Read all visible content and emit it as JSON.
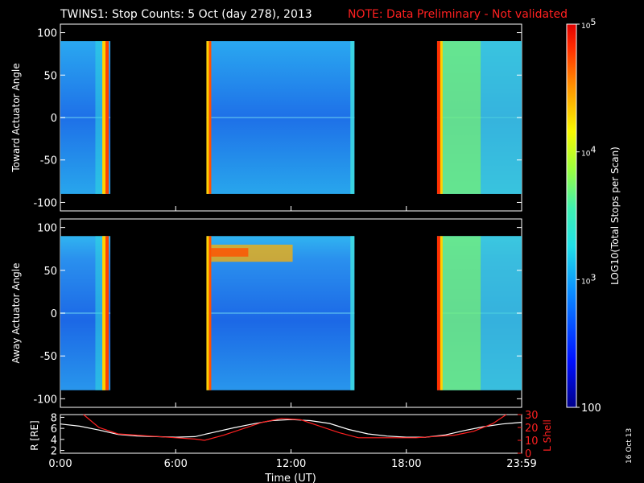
{
  "header": {
    "title": "TWINS1: Stop Counts:  5 Oct (day 278), 2013",
    "note": "NOTE: Data Preliminary - Not validated"
  },
  "plot_date": "16 Oct 13",
  "colorbar": {
    "label": "LOG10(Total Stops per Scan)",
    "ticks": [
      "10^5",
      "10^4",
      "10^3",
      "100"
    ],
    "range": [
      100,
      100000
    ],
    "scale": "log"
  },
  "chart_data": [
    {
      "type": "heatmap",
      "name": "toward",
      "ylabel": "Toward Actuator Angle",
      "ylim": [
        -110,
        110
      ],
      "yticks": [
        100,
        50,
        0,
        -50,
        -100
      ],
      "angle_range": [
        -90,
        90
      ],
      "x_unit": "hours UT",
      "segments": [
        {
          "start": 0.0,
          "end": 2.6
        },
        {
          "start": 7.6,
          "end": 15.3
        },
        {
          "start": 19.6,
          "end": 24.0
        }
      ],
      "colorscale": "log counts 100 to 100000"
    },
    {
      "type": "heatmap",
      "name": "away",
      "ylabel": "Away Actuator Angle",
      "ylim": [
        -110,
        110
      ],
      "yticks": [
        100,
        50,
        0,
        -50,
        -100
      ],
      "angle_range": [
        -90,
        90
      ],
      "x_unit": "hours UT",
      "segments": [
        {
          "start": 0.0,
          "end": 2.6
        },
        {
          "start": 7.6,
          "end": 15.3
        },
        {
          "start": 19.6,
          "end": 24.0
        }
      ],
      "colorscale": "log counts 100 to 100000"
    },
    {
      "type": "line",
      "name": "orbit",
      "ylabel_left": "R [RE]",
      "ylabel_right": "L Shell",
      "xlabel": "Time (UT)",
      "xlim": [
        0,
        24
      ],
      "xticks": [
        "0:00",
        "6:00",
        "12:00",
        "18:00",
        "23:59"
      ],
      "yticks_left": [
        "8",
        "6",
        "4",
        "2"
      ],
      "ylim_left": [
        1.5,
        8.5
      ],
      "yticks_right": [
        "30",
        "20",
        "10",
        "0"
      ],
      "ylim_right": [
        0,
        30
      ],
      "series": [
        {
          "axis": "left",
          "color": "#ffffff",
          "x": [
            0,
            1,
            2,
            3,
            4,
            5,
            6,
            7,
            8,
            9,
            10,
            11,
            12,
            13,
            14,
            15,
            16,
            17,
            18,
            19,
            20,
            21,
            22,
            23,
            24
          ],
          "y": [
            6.8,
            6.4,
            5.7,
            4.9,
            4.6,
            4.5,
            4.4,
            4.5,
            5.3,
            6.1,
            6.8,
            7.4,
            7.6,
            7.4,
            6.9,
            5.8,
            5.0,
            4.6,
            4.4,
            4.4,
            4.8,
            5.6,
            6.3,
            6.8,
            7.1
          ]
        },
        {
          "axis": "right",
          "color": "#ff2020",
          "x": [
            1.2,
            2,
            3,
            4,
            5,
            6,
            7,
            7.5,
            8.5,
            9.5,
            10.5,
            11.5,
            12.5,
            13.5,
            14.5,
            15.5,
            16.5,
            17.5,
            18.5,
            19.5,
            20.5,
            21.5,
            22.5,
            23.2
          ],
          "y": [
            30,
            20,
            15,
            14,
            13,
            12,
            11,
            10,
            14,
            19,
            24,
            27,
            26,
            21,
            16,
            12,
            12,
            12,
            12,
            13,
            14,
            17,
            23,
            30
          ]
        }
      ]
    }
  ]
}
